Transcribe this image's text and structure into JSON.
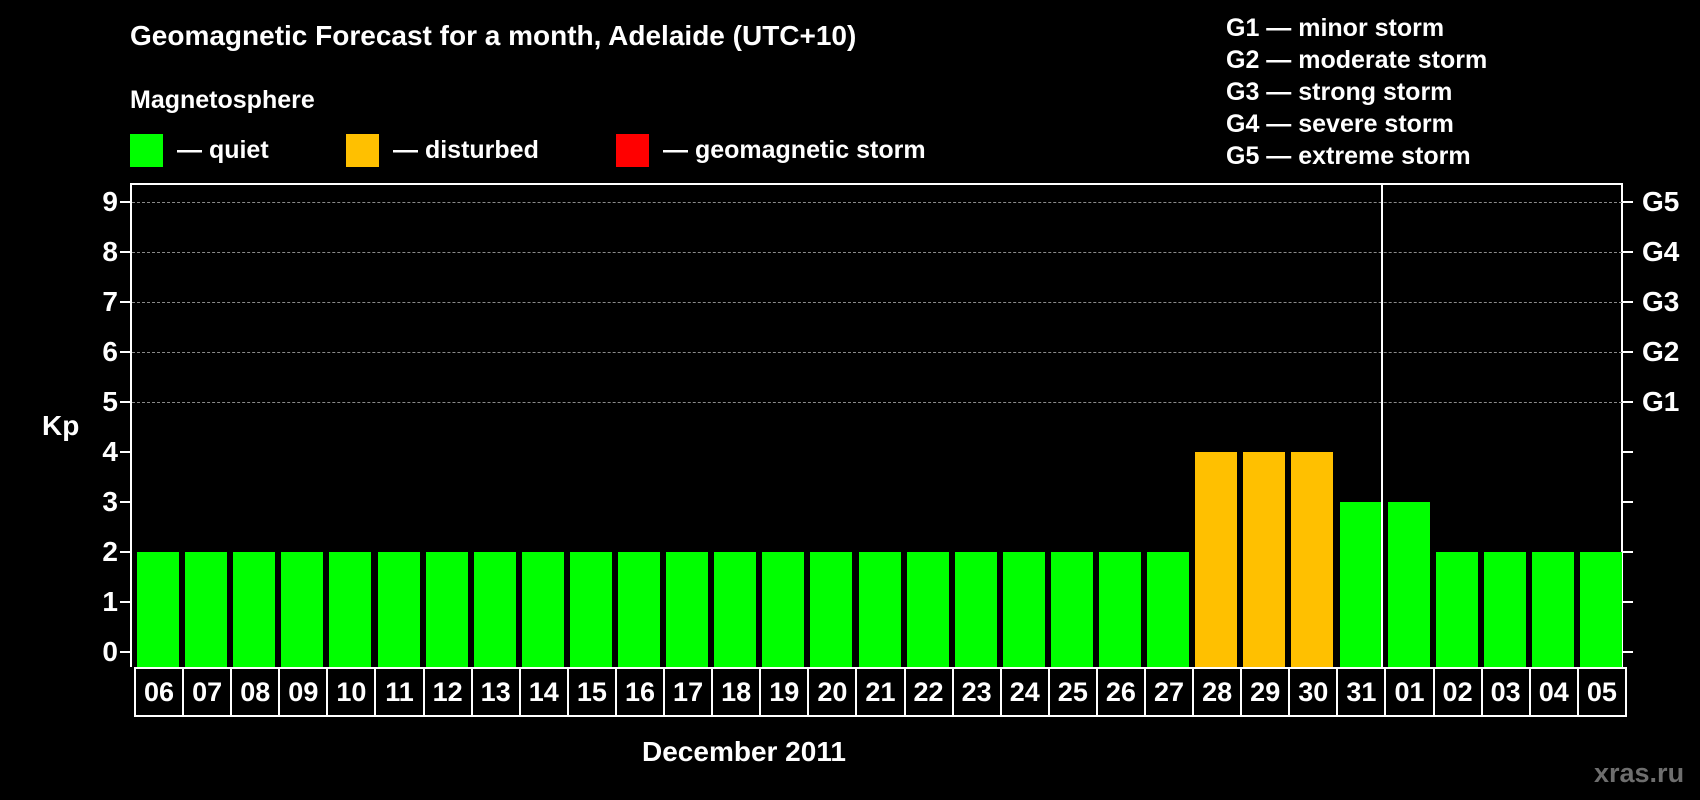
{
  "title": "Geomagnetic Forecast for a month, Adelaide (UTC+10)",
  "subtitle": "Magnetosphere",
  "legend": [
    {
      "label": "— quiet",
      "color": "#00ff00"
    },
    {
      "label": "— disturbed",
      "color": "#ffc000"
    },
    {
      "label": "— geomagnetic storm",
      "color": "#ff0000"
    }
  ],
  "storm_legend": [
    "G1 — minor storm",
    "G2 — moderate storm",
    "G3 — strong storm",
    "G4 — severe storm",
    "G5 — extreme storm"
  ],
  "watermark": "xras.ru",
  "chart_data": {
    "type": "bar",
    "title": "Geomagnetic Forecast for a month, Adelaide (UTC+10)",
    "xlabel": "December 2011",
    "ylabel": "Kp",
    "ylim": [
      0,
      9
    ],
    "yticks": [
      0,
      1,
      2,
      3,
      4,
      5,
      6,
      7,
      8,
      9
    ],
    "right_axis_labels": [
      {
        "kp": 5,
        "label": "G1"
      },
      {
        "kp": 6,
        "label": "G2"
      },
      {
        "kp": 7,
        "label": "G3"
      },
      {
        "kp": 8,
        "label": "G4"
      },
      {
        "kp": 9,
        "label": "G5"
      }
    ],
    "grid": "dashed horizontal at Kp 5-9",
    "month_separator_after": "31",
    "categories": [
      "06",
      "07",
      "08",
      "09",
      "10",
      "11",
      "12",
      "13",
      "14",
      "15",
      "16",
      "17",
      "18",
      "19",
      "20",
      "21",
      "22",
      "23",
      "24",
      "25",
      "26",
      "27",
      "28",
      "29",
      "30",
      "31",
      "01",
      "02",
      "03",
      "04",
      "05"
    ],
    "values": [
      2,
      2,
      2,
      2,
      2,
      2,
      2,
      2,
      2,
      2,
      2,
      2,
      2,
      2,
      2,
      2,
      2,
      2,
      2,
      2,
      2,
      2,
      4,
      4,
      4,
      3,
      3,
      2,
      2,
      2,
      2
    ],
    "status": [
      "quiet",
      "quiet",
      "quiet",
      "quiet",
      "quiet",
      "quiet",
      "quiet",
      "quiet",
      "quiet",
      "quiet",
      "quiet",
      "quiet",
      "quiet",
      "quiet",
      "quiet",
      "quiet",
      "quiet",
      "quiet",
      "quiet",
      "quiet",
      "quiet",
      "quiet",
      "disturbed",
      "disturbed",
      "disturbed",
      "quiet",
      "quiet",
      "quiet",
      "quiet",
      "quiet",
      "quiet"
    ],
    "colors": {
      "quiet": "#00ff00",
      "disturbed": "#ffc000",
      "storm": "#ff0000"
    }
  }
}
